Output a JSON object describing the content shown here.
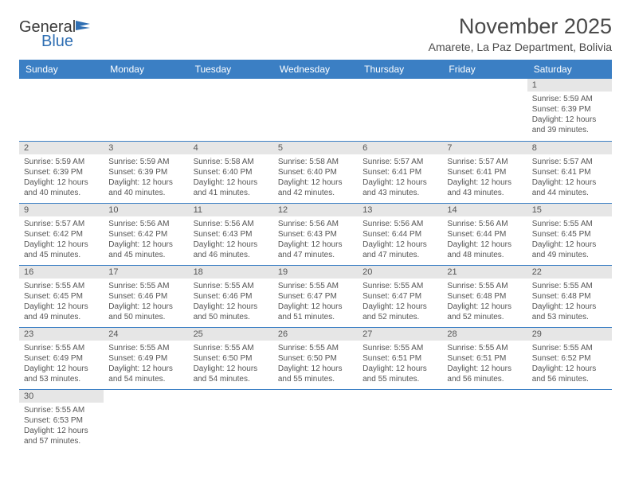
{
  "logo": {
    "word1": "General",
    "word2": "Blue"
  },
  "title": "November 2025",
  "subtitle": "Amarete, La Paz Department, Bolivia",
  "colors": {
    "header_bg": "#3b7fc4",
    "header_text": "#ffffff",
    "daynum_bg": "#e6e6e6",
    "row_border": "#3b7fc4"
  },
  "weekdays": [
    "Sunday",
    "Monday",
    "Tuesday",
    "Wednesday",
    "Thursday",
    "Friday",
    "Saturday"
  ],
  "weeks": [
    [
      null,
      null,
      null,
      null,
      null,
      null,
      {
        "n": "1",
        "sr": "5:59 AM",
        "ss": "6:39 PM",
        "dl": "12 hours and 39 minutes."
      }
    ],
    [
      {
        "n": "2",
        "sr": "5:59 AM",
        "ss": "6:39 PM",
        "dl": "12 hours and 40 minutes."
      },
      {
        "n": "3",
        "sr": "5:59 AM",
        "ss": "6:39 PM",
        "dl": "12 hours and 40 minutes."
      },
      {
        "n": "4",
        "sr": "5:58 AM",
        "ss": "6:40 PM",
        "dl": "12 hours and 41 minutes."
      },
      {
        "n": "5",
        "sr": "5:58 AM",
        "ss": "6:40 PM",
        "dl": "12 hours and 42 minutes."
      },
      {
        "n": "6",
        "sr": "5:57 AM",
        "ss": "6:41 PM",
        "dl": "12 hours and 43 minutes."
      },
      {
        "n": "7",
        "sr": "5:57 AM",
        "ss": "6:41 PM",
        "dl": "12 hours and 43 minutes."
      },
      {
        "n": "8",
        "sr": "5:57 AM",
        "ss": "6:41 PM",
        "dl": "12 hours and 44 minutes."
      }
    ],
    [
      {
        "n": "9",
        "sr": "5:57 AM",
        "ss": "6:42 PM",
        "dl": "12 hours and 45 minutes."
      },
      {
        "n": "10",
        "sr": "5:56 AM",
        "ss": "6:42 PM",
        "dl": "12 hours and 45 minutes."
      },
      {
        "n": "11",
        "sr": "5:56 AM",
        "ss": "6:43 PM",
        "dl": "12 hours and 46 minutes."
      },
      {
        "n": "12",
        "sr": "5:56 AM",
        "ss": "6:43 PM",
        "dl": "12 hours and 47 minutes."
      },
      {
        "n": "13",
        "sr": "5:56 AM",
        "ss": "6:44 PM",
        "dl": "12 hours and 47 minutes."
      },
      {
        "n": "14",
        "sr": "5:56 AM",
        "ss": "6:44 PM",
        "dl": "12 hours and 48 minutes."
      },
      {
        "n": "15",
        "sr": "5:55 AM",
        "ss": "6:45 PM",
        "dl": "12 hours and 49 minutes."
      }
    ],
    [
      {
        "n": "16",
        "sr": "5:55 AM",
        "ss": "6:45 PM",
        "dl": "12 hours and 49 minutes."
      },
      {
        "n": "17",
        "sr": "5:55 AM",
        "ss": "6:46 PM",
        "dl": "12 hours and 50 minutes."
      },
      {
        "n": "18",
        "sr": "5:55 AM",
        "ss": "6:46 PM",
        "dl": "12 hours and 50 minutes."
      },
      {
        "n": "19",
        "sr": "5:55 AM",
        "ss": "6:47 PM",
        "dl": "12 hours and 51 minutes."
      },
      {
        "n": "20",
        "sr": "5:55 AM",
        "ss": "6:47 PM",
        "dl": "12 hours and 52 minutes."
      },
      {
        "n": "21",
        "sr": "5:55 AM",
        "ss": "6:48 PM",
        "dl": "12 hours and 52 minutes."
      },
      {
        "n": "22",
        "sr": "5:55 AM",
        "ss": "6:48 PM",
        "dl": "12 hours and 53 minutes."
      }
    ],
    [
      {
        "n": "23",
        "sr": "5:55 AM",
        "ss": "6:49 PM",
        "dl": "12 hours and 53 minutes."
      },
      {
        "n": "24",
        "sr": "5:55 AM",
        "ss": "6:49 PM",
        "dl": "12 hours and 54 minutes."
      },
      {
        "n": "25",
        "sr": "5:55 AM",
        "ss": "6:50 PM",
        "dl": "12 hours and 54 minutes."
      },
      {
        "n": "26",
        "sr": "5:55 AM",
        "ss": "6:50 PM",
        "dl": "12 hours and 55 minutes."
      },
      {
        "n": "27",
        "sr": "5:55 AM",
        "ss": "6:51 PM",
        "dl": "12 hours and 55 minutes."
      },
      {
        "n": "28",
        "sr": "5:55 AM",
        "ss": "6:51 PM",
        "dl": "12 hours and 56 minutes."
      },
      {
        "n": "29",
        "sr": "5:55 AM",
        "ss": "6:52 PM",
        "dl": "12 hours and 56 minutes."
      }
    ],
    [
      {
        "n": "30",
        "sr": "5:55 AM",
        "ss": "6:53 PM",
        "dl": "12 hours and 57 minutes."
      },
      null,
      null,
      null,
      null,
      null,
      null
    ]
  ],
  "labels": {
    "sunrise": "Sunrise:",
    "sunset": "Sunset:",
    "daylight": "Daylight:"
  }
}
